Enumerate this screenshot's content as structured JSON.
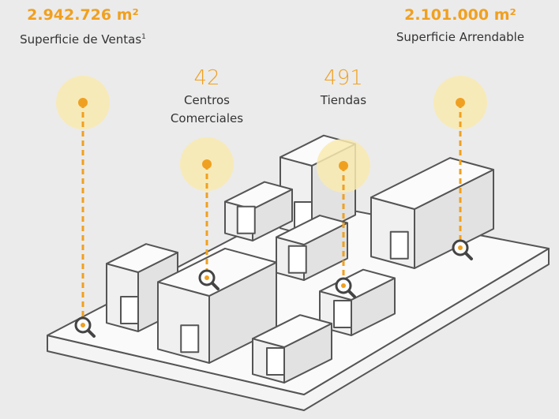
{
  "stats": [
    {
      "value": "2.942.726 m²",
      "label": "Superficie de Ventas",
      "footnote": "1"
    },
    {
      "value": "42",
      "label": "Centros Comerciales"
    },
    {
      "value": "491",
      "label": "Tiendas"
    },
    {
      "value": "2.101.000 m²",
      "label": "Superficie Arrendable"
    }
  ]
}
